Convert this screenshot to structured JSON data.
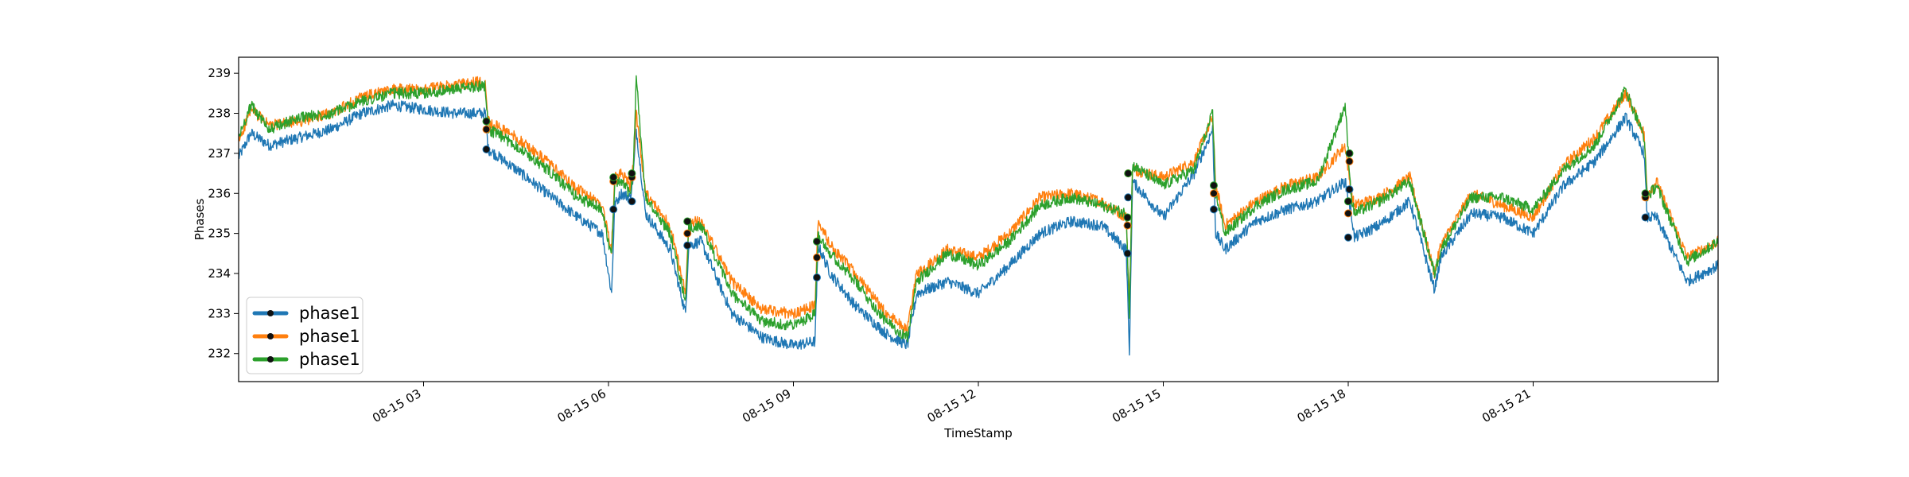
{
  "chart_data": {
    "type": "line",
    "title": "",
    "xlabel": "TimeStamp",
    "ylabel": "Phases",
    "x_range_hours": [
      0,
      24
    ],
    "ylim": [
      231.3,
      239.4
    ],
    "x_ticks": [
      {
        "hour": 3,
        "label": "08-15 03"
      },
      {
        "hour": 6,
        "label": "08-15 06"
      },
      {
        "hour": 9,
        "label": "08-15 09"
      },
      {
        "hour": 12,
        "label": "08-15 12"
      },
      {
        "hour": 15,
        "label": "08-15 15"
      },
      {
        "hour": 18,
        "label": "08-15 18"
      },
      {
        "hour": 21,
        "label": "08-15 21"
      }
    ],
    "y_ticks": [
      232,
      233,
      234,
      235,
      236,
      237,
      238,
      239
    ],
    "legend_position": "lower-left",
    "grid": false,
    "series": [
      {
        "name": "phase1",
        "color": "#1f77b4",
        "x": [
          0.0,
          0.2,
          0.5,
          1.0,
          1.5,
          2.0,
          2.5,
          3.0,
          3.5,
          4.0,
          4.05,
          4.5,
          5.0,
          5.5,
          5.9,
          6.05,
          6.1,
          6.2,
          6.35,
          6.4,
          6.45,
          6.6,
          7.0,
          7.25,
          7.3,
          7.5,
          8.0,
          8.5,
          9.0,
          9.35,
          9.4,
          9.6,
          10.0,
          10.5,
          10.85,
          11.0,
          11.5,
          12.0,
          12.5,
          13.0,
          13.5,
          14.0,
          14.4,
          14.45,
          14.5,
          15.0,
          15.5,
          15.8,
          15.85,
          16.0,
          16.5,
          17.0,
          17.5,
          17.95,
          18.05,
          18.1,
          18.5,
          19.0,
          19.4,
          19.5,
          20.0,
          20.5,
          21.0,
          21.5,
          22.0,
          22.5,
          22.8,
          22.85,
          23.0,
          23.5,
          24.0
        ],
        "y": [
          236.9,
          237.5,
          237.2,
          237.4,
          237.6,
          238.0,
          238.2,
          238.1,
          238.0,
          238.0,
          237.1,
          236.6,
          236.0,
          235.4,
          235.0,
          233.5,
          235.7,
          236.0,
          235.9,
          236.4,
          237.6,
          235.5,
          234.6,
          233.0,
          234.7,
          234.8,
          233.0,
          232.4,
          232.2,
          232.3,
          234.7,
          234.0,
          233.2,
          232.5,
          232.2,
          233.5,
          233.8,
          233.5,
          234.2,
          235.0,
          235.3,
          235.2,
          234.6,
          232.0,
          236.3,
          235.4,
          236.5,
          237.6,
          235.0,
          234.6,
          235.3,
          235.6,
          235.8,
          236.3,
          235.5,
          234.9,
          235.2,
          235.8,
          233.6,
          234.4,
          235.5,
          235.4,
          235.0,
          236.2,
          236.8,
          237.9,
          237.0,
          235.4,
          235.4,
          233.8,
          234.2
        ]
      },
      {
        "name": "phase1",
        "color": "#ff7f0e",
        "x": [
          0.0,
          0.2,
          0.5,
          1.0,
          1.5,
          2.0,
          2.5,
          3.0,
          3.5,
          4.0,
          4.05,
          4.5,
          5.0,
          5.5,
          5.9,
          6.05,
          6.1,
          6.2,
          6.35,
          6.4,
          6.45,
          6.6,
          7.0,
          7.25,
          7.3,
          7.5,
          8.0,
          8.5,
          9.0,
          9.35,
          9.4,
          9.6,
          10.0,
          10.5,
          10.85,
          11.0,
          11.5,
          12.0,
          12.5,
          13.0,
          13.5,
          14.0,
          14.4,
          14.45,
          14.5,
          15.0,
          15.5,
          15.8,
          15.85,
          16.0,
          16.5,
          17.0,
          17.5,
          17.95,
          18.05,
          18.1,
          18.5,
          19.0,
          19.4,
          19.5,
          20.0,
          20.5,
          21.0,
          21.5,
          22.0,
          22.5,
          22.8,
          22.85,
          23.0,
          23.5,
          24.0
        ],
        "y": [
          237.3,
          238.1,
          237.7,
          237.8,
          238.0,
          238.4,
          238.6,
          238.6,
          238.7,
          238.8,
          237.8,
          237.4,
          236.8,
          236.1,
          235.7,
          234.6,
          236.4,
          236.5,
          236.2,
          236.7,
          238.0,
          236.0,
          235.2,
          233.5,
          235.3,
          235.3,
          233.8,
          233.1,
          233.0,
          233.2,
          235.3,
          234.7,
          234.0,
          233.0,
          232.6,
          234.0,
          234.6,
          234.4,
          235.0,
          235.9,
          236.0,
          235.8,
          235.4,
          233.2,
          236.6,
          236.4,
          236.8,
          237.9,
          236.2,
          235.2,
          235.8,
          236.2,
          236.4,
          237.2,
          236.0,
          235.7,
          235.9,
          236.4,
          234.0,
          234.7,
          236.0,
          235.7,
          235.4,
          236.7,
          237.4,
          238.5,
          237.5,
          236.0,
          236.3,
          234.4,
          234.8
        ]
      },
      {
        "name": "phase1",
        "color": "#2ca02c",
        "x": [
          0.0,
          0.2,
          0.5,
          1.0,
          1.5,
          2.0,
          2.5,
          3.0,
          3.5,
          4.0,
          4.05,
          4.5,
          5.0,
          5.5,
          5.9,
          6.05,
          6.1,
          6.2,
          6.35,
          6.4,
          6.45,
          6.6,
          7.0,
          7.25,
          7.3,
          7.5,
          8.0,
          8.5,
          9.0,
          9.35,
          9.4,
          9.6,
          10.0,
          10.5,
          10.85,
          11.0,
          11.5,
          12.0,
          12.5,
          13.0,
          13.5,
          14.0,
          14.4,
          14.45,
          14.5,
          15.0,
          15.5,
          15.8,
          15.85,
          16.0,
          16.5,
          17.0,
          17.5,
          17.95,
          18.05,
          18.1,
          18.5,
          19.0,
          19.4,
          19.5,
          20.0,
          20.5,
          21.0,
          21.5,
          22.0,
          22.5,
          22.8,
          22.85,
          23.0,
          23.5,
          24.0
        ],
        "y": [
          237.4,
          238.2,
          237.6,
          237.9,
          238.0,
          238.3,
          238.5,
          238.5,
          238.6,
          238.7,
          237.6,
          237.2,
          236.6,
          235.9,
          235.6,
          234.4,
          236.2,
          236.3,
          236.0,
          236.5,
          238.9,
          235.9,
          235.0,
          233.3,
          235.1,
          235.2,
          233.5,
          232.8,
          232.7,
          233.0,
          235.0,
          234.5,
          233.8,
          232.8,
          232.4,
          233.8,
          234.5,
          234.2,
          234.8,
          235.7,
          235.9,
          235.7,
          235.5,
          233.0,
          236.7,
          236.2,
          236.6,
          238.0,
          236.0,
          235.0,
          235.7,
          236.1,
          236.3,
          238.2,
          235.9,
          235.5,
          235.8,
          236.3,
          234.0,
          234.6,
          235.9,
          235.9,
          235.6,
          236.6,
          237.2,
          238.6,
          237.4,
          235.9,
          236.2,
          234.3,
          234.8
        ]
      }
    ],
    "markers": [
      {
        "hour": 4.02,
        "y": [
          237.1,
          237.6,
          237.8
        ]
      },
      {
        "hour": 6.08,
        "y": [
          235.6,
          236.3,
          236.4
        ]
      },
      {
        "hour": 6.38,
        "y": [
          235.8,
          236.4,
          236.5
        ]
      },
      {
        "hour": 7.28,
        "y": [
          234.7,
          235.0,
          235.3
        ]
      },
      {
        "hour": 9.38,
        "y": [
          233.9,
          234.4,
          234.8
        ]
      },
      {
        "hour": 14.42,
        "y": [
          234.5,
          235.2,
          235.4
        ]
      },
      {
        "hour": 14.43,
        "y": [
          235.9,
          236.5,
          236.5
        ]
      },
      {
        "hour": 15.82,
        "y": [
          235.6,
          236.0,
          236.2
        ]
      },
      {
        "hour": 18.0,
        "y": [
          234.9,
          235.5,
          235.8
        ]
      },
      {
        "hour": 18.02,
        "y": [
          236.1,
          236.8,
          237.0
        ]
      },
      {
        "hour": 22.82,
        "y": [
          235.4,
          235.9,
          236.0
        ]
      }
    ]
  }
}
